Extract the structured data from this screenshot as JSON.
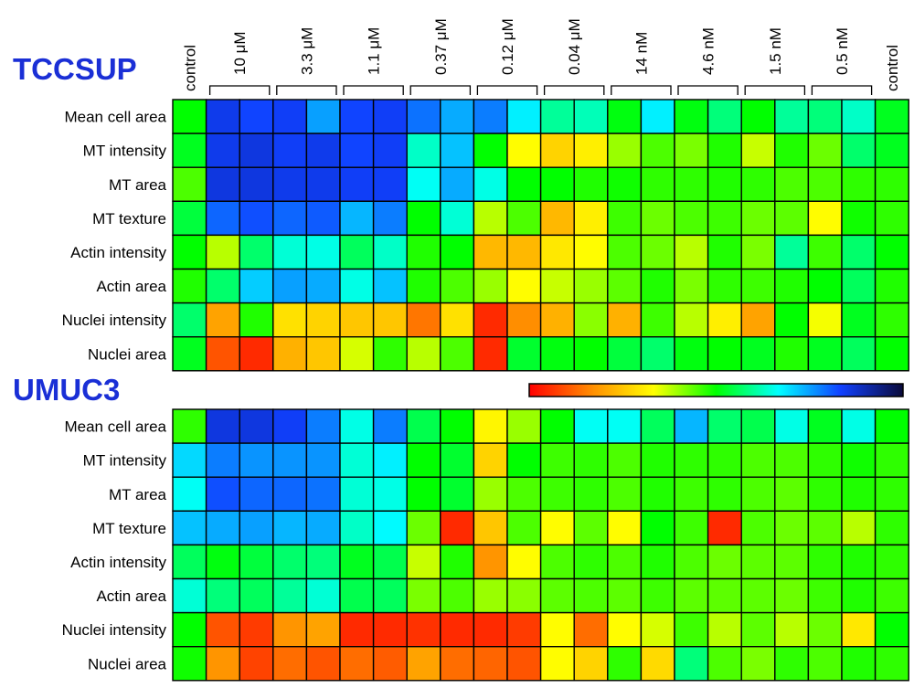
{
  "chart_data": {
    "type": "heatmap",
    "columns": [
      "control",
      "10 μM",
      "3.3 μM",
      "1.1 μM",
      "0.37 μM",
      "0.12 μM",
      "0.04 μM",
      "14 nM",
      "4.6 nM",
      "1.5 nM",
      "0.5 nM",
      "control"
    ],
    "replicates_per_dose": 2,
    "rows": [
      "Mean cell area",
      "MT intensity",
      "MT area",
      "MT texture",
      "Actin intensity",
      "Actin area",
      "Nuclei intensity",
      "Nuclei area"
    ],
    "colorscale": [
      "#ff0000",
      "#ff8c00",
      "#ffff00",
      "#00ff00",
      "#00ffff",
      "#1040ff",
      "#0a0a3a"
    ],
    "colorscale_range": [
      0,
      1
    ],
    "panels": [
      {
        "title": "TCCSUP",
        "values": [
          [
            0.5,
            0.85,
            0.83,
            0.84,
            0.75,
            0.83,
            0.84,
            0.79,
            0.74,
            0.78,
            0.68,
            0.6,
            0.62,
            0.51,
            0.68,
            0.51,
            0.58,
            0.5,
            0.6,
            0.58,
            0.63,
            0.52
          ],
          [
            0.52,
            0.85,
            0.86,
            0.84,
            0.85,
            0.83,
            0.84,
            0.63,
            0.72,
            0.5,
            0.33,
            0.27,
            0.31,
            0.4,
            0.45,
            0.42,
            0.48,
            0.37,
            0.48,
            0.43,
            0.57,
            0.52
          ],
          [
            0.45,
            0.86,
            0.86,
            0.85,
            0.85,
            0.84,
            0.84,
            0.66,
            0.74,
            0.65,
            0.5,
            0.5,
            0.48,
            0.49,
            0.47,
            0.47,
            0.48,
            0.47,
            0.45,
            0.45,
            0.47,
            0.47
          ],
          [
            0.54,
            0.8,
            0.82,
            0.8,
            0.81,
            0.73,
            0.78,
            0.5,
            0.64,
            0.38,
            0.45,
            0.23,
            0.31,
            0.46,
            0.43,
            0.45,
            0.46,
            0.43,
            0.44,
            0.33,
            0.49,
            0.47
          ],
          [
            0.5,
            0.38,
            0.57,
            0.64,
            0.65,
            0.56,
            0.63,
            0.48,
            0.5,
            0.23,
            0.23,
            0.3,
            0.33,
            0.45,
            0.43,
            0.38,
            0.48,
            0.42,
            0.6,
            0.46,
            0.57,
            0.5
          ],
          [
            0.48,
            0.57,
            0.71,
            0.75,
            0.74,
            0.65,
            0.72,
            0.48,
            0.45,
            0.4,
            0.33,
            0.37,
            0.4,
            0.44,
            0.48,
            0.42,
            0.47,
            0.46,
            0.48,
            0.5,
            0.56,
            0.48
          ],
          [
            0.57,
            0.2,
            0.48,
            0.29,
            0.27,
            0.25,
            0.25,
            0.14,
            0.29,
            0.05,
            0.17,
            0.22,
            0.41,
            0.22,
            0.46,
            0.38,
            0.31,
            0.2,
            0.5,
            0.34,
            0.52,
            0.47
          ],
          [
            0.52,
            0.1,
            0.05,
            0.22,
            0.25,
            0.36,
            0.47,
            0.38,
            0.45,
            0.05,
            0.53,
            0.51,
            0.5,
            0.54,
            0.57,
            0.51,
            0.5,
            0.52,
            0.48,
            0.52,
            0.56,
            0.5
          ]
        ]
      },
      {
        "title": "UMUC3",
        "values": [
          [
            0.47,
            0.86,
            0.86,
            0.84,
            0.78,
            0.65,
            0.78,
            0.55,
            0.5,
            0.32,
            0.4,
            0.5,
            0.66,
            0.66,
            0.56,
            0.73,
            0.57,
            0.55,
            0.65,
            0.52,
            0.65,
            0.5
          ],
          [
            0.7,
            0.78,
            0.76,
            0.76,
            0.76,
            0.64,
            0.68,
            0.5,
            0.53,
            0.27,
            0.5,
            0.46,
            0.47,
            0.45,
            0.48,
            0.47,
            0.47,
            0.45,
            0.45,
            0.47,
            0.49,
            0.47
          ],
          [
            0.66,
            0.82,
            0.8,
            0.8,
            0.79,
            0.64,
            0.65,
            0.5,
            0.53,
            0.4,
            0.45,
            0.46,
            0.47,
            0.45,
            0.48,
            0.46,
            0.47,
            0.45,
            0.44,
            0.47,
            0.48,
            0.47
          ],
          [
            0.72,
            0.74,
            0.75,
            0.73,
            0.74,
            0.63,
            0.67,
            0.43,
            0.05,
            0.25,
            0.45,
            0.33,
            0.44,
            0.33,
            0.5,
            0.46,
            0.05,
            0.45,
            0.43,
            0.44,
            0.38,
            0.47
          ],
          [
            0.56,
            0.51,
            0.54,
            0.57,
            0.58,
            0.52,
            0.55,
            0.37,
            0.48,
            0.18,
            0.33,
            0.45,
            0.47,
            0.45,
            0.48,
            0.45,
            0.43,
            0.44,
            0.44,
            0.47,
            0.48,
            0.47
          ],
          [
            0.64,
            0.58,
            0.56,
            0.6,
            0.64,
            0.55,
            0.56,
            0.42,
            0.45,
            0.4,
            0.41,
            0.44,
            0.45,
            0.44,
            0.46,
            0.44,
            0.44,
            0.44,
            0.43,
            0.46,
            0.48,
            0.46
          ],
          [
            0.5,
            0.1,
            0.07,
            0.18,
            0.2,
            0.05,
            0.05,
            0.06,
            0.05,
            0.05,
            0.07,
            0.33,
            0.13,
            0.33,
            0.36,
            0.46,
            0.38,
            0.44,
            0.38,
            0.43,
            0.3,
            0.5
          ],
          [
            0.49,
            0.18,
            0.08,
            0.13,
            0.1,
            0.13,
            0.11,
            0.2,
            0.13,
            0.12,
            0.1,
            0.33,
            0.27,
            0.47,
            0.28,
            0.58,
            0.45,
            0.42,
            0.47,
            0.45,
            0.48,
            0.47
          ]
        ]
      }
    ]
  }
}
